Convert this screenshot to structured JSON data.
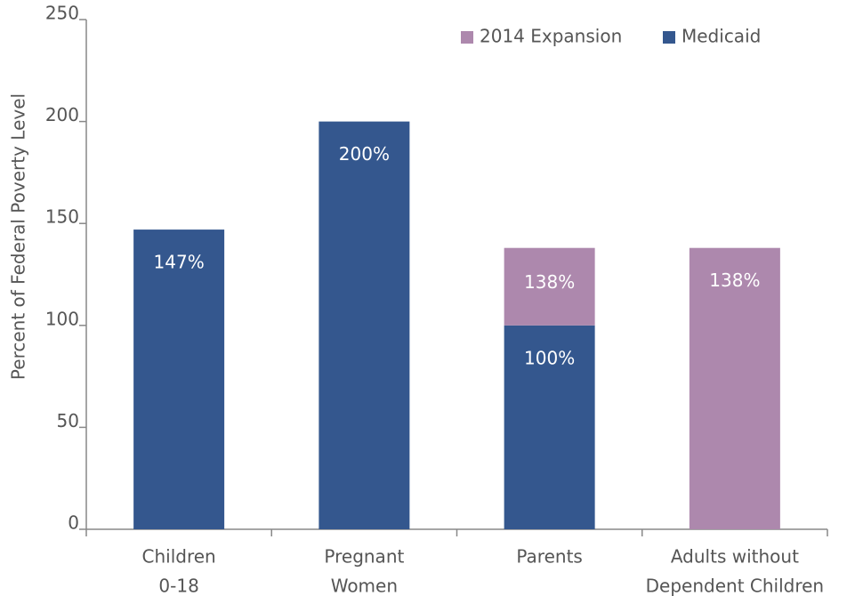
{
  "chart_data": {
    "type": "stacked_bar",
    "y_label": "Percent of Federal Poverty Level",
    "categories": [
      [
        "Children",
        "0-18"
      ],
      [
        "Pregnant",
        "Women"
      ],
      [
        "Parents"
      ],
      [
        "Adults without",
        "Dependent Children"
      ]
    ],
    "series": [
      {
        "name": "Medicaid",
        "color": "#34578e",
        "values": [
          147,
          200,
          100,
          0
        ],
        "value_labels": [
          "147%",
          "200%",
          "100%",
          null
        ]
      },
      {
        "name": "2014 Expansion",
        "color": "#ad88ad",
        "values": [
          0,
          0,
          38,
          138
        ],
        "value_labels": [
          null,
          null,
          null,
          "138%"
        ]
      }
    ],
    "annotations": [
      "138%"
    ],
    "ylim": [
      0,
      250
    ],
    "yticks": [
      0,
      50,
      100,
      150,
      200,
      250
    ]
  }
}
